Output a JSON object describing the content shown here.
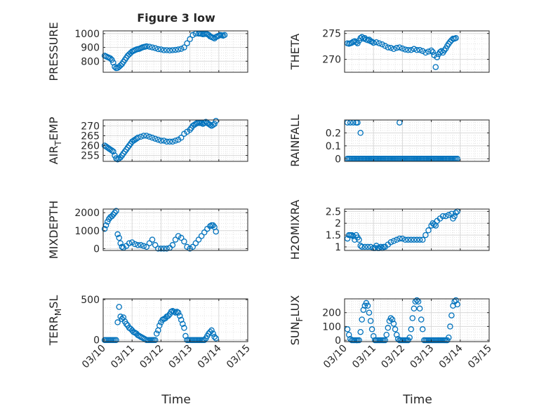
{
  "figure": {
    "title": "Figure 3 low",
    "xlabel": "Time",
    "marker_color": "#0072BD"
  },
  "chart_data": [
    {
      "type": "scatter",
      "ylabel": "PRESSURE",
      "title": "Figure 3 low",
      "xlim": [
        0,
        5
      ],
      "ylim": [
        720,
        1020
      ],
      "yticks": [
        800,
        900,
        1000
      ],
      "ytick_labels": [
        "800",
        "900",
        "1000"
      ],
      "xtick_labels": [],
      "x": [
        0.05,
        0.1,
        0.15,
        0.2,
        0.25,
        0.3,
        0.35,
        0.4,
        0.45,
        0.5,
        0.55,
        0.6,
        0.65,
        0.7,
        0.75,
        0.8,
        0.85,
        0.9,
        0.95,
        1.0,
        1.05,
        1.1,
        1.15,
        1.2,
        1.25,
        1.3,
        1.35,
        1.4,
        1.45,
        1.5,
        1.6,
        1.7,
        1.8,
        1.9,
        2.0,
        2.1,
        2.2,
        2.3,
        2.4,
        2.5,
        2.6,
        2.7,
        2.8,
        2.9,
        3.0,
        3.1,
        3.2,
        3.3,
        3.35,
        3.4,
        3.45,
        3.5,
        3.55,
        3.6,
        3.65,
        3.7,
        3.75,
        3.8,
        3.85,
        3.9,
        3.95,
        4.0,
        4.05,
        4.1,
        4.15,
        4.2
      ],
      "y": [
        840,
        835,
        830,
        825,
        820,
        810,
        790,
        760,
        750,
        752,
        760,
        770,
        780,
        795,
        810,
        825,
        840,
        850,
        860,
        870,
        875,
        880,
        885,
        888,
        890,
        895,
        900,
        903,
        905,
        908,
        905,
        900,
        895,
        888,
        885,
        880,
        880,
        878,
        880,
        882,
        885,
        890,
        900,
        930,
        960,
        990,
        1000,
        1000,
        1000,
        998,
        995,
        997,
        1000,
        996,
        990,
        980,
        975,
        970,
        965,
        975,
        980,
        985,
        990,
        988,
        985,
        990
      ]
    },
    {
      "type": "scatter",
      "ylabel": "THETA",
      "xlim": [
        0,
        5
      ],
      "ylim": [
        267.5,
        275.5
      ],
      "yticks": [
        270,
        275
      ],
      "ytick_labels": [
        "270",
        "275"
      ],
      "xtick_labels": [],
      "x": [
        0.1,
        0.15,
        0.2,
        0.25,
        0.3,
        0.35,
        0.4,
        0.45,
        0.5,
        0.55,
        0.6,
        0.65,
        0.7,
        0.75,
        0.8,
        0.85,
        0.9,
        0.95,
        1.0,
        1.1,
        1.2,
        1.3,
        1.4,
        1.5,
        1.6,
        1.7,
        1.8,
        1.9,
        2.0,
        2.1,
        2.2,
        2.3,
        2.4,
        2.5,
        2.6,
        2.7,
        2.8,
        2.9,
        3.0,
        3.05,
        3.1,
        3.15,
        3.2,
        3.25,
        3.3,
        3.35,
        3.4,
        3.45,
        3.5,
        3.55,
        3.6,
        3.65,
        3.7,
        3.75,
        3.8,
        3.85
      ],
      "y": [
        273.1,
        273.0,
        273.1,
        273.2,
        273.4,
        273.5,
        273.3,
        273.1,
        273.6,
        274.1,
        274.3,
        274.0,
        274.1,
        273.8,
        273.7,
        273.8,
        273.5,
        273.4,
        273.2,
        273.3,
        273.1,
        272.9,
        272.6,
        272.3,
        272.2,
        272.0,
        272.2,
        272.3,
        272.1,
        271.9,
        271.8,
        271.8,
        272.0,
        271.8,
        271.8,
        271.6,
        271.3,
        271.5,
        271.7,
        271.4,
        270.8,
        268.5,
        270.4,
        271.0,
        271.4,
        271.6,
        271.3,
        271.7,
        272.1,
        272.6,
        273.0,
        273.4,
        273.7,
        274.0,
        274.0,
        274.1
      ]
    },
    {
      "type": "scatter",
      "ylabel": "AIR_TEMP",
      "ylabel_parts": [
        "AIR",
        "T",
        "EMP"
      ],
      "xlim": [
        0,
        5
      ],
      "ylim": [
        252,
        273
      ],
      "yticks": [
        255,
        260,
        265,
        270
      ],
      "ytick_labels": [
        "255",
        "260",
        "265",
        "270"
      ],
      "xtick_labels": [],
      "x": [
        0.05,
        0.1,
        0.15,
        0.2,
        0.25,
        0.3,
        0.35,
        0.4,
        0.45,
        0.5,
        0.55,
        0.6,
        0.65,
        0.7,
        0.75,
        0.8,
        0.85,
        0.9,
        0.95,
        1.0,
        1.05,
        1.1,
        1.15,
        1.2,
        1.3,
        1.4,
        1.5,
        1.6,
        1.7,
        1.8,
        1.9,
        2.0,
        2.1,
        2.2,
        2.3,
        2.4,
        2.5,
        2.6,
        2.7,
        2.8,
        2.9,
        3.0,
        3.05,
        3.1,
        3.15,
        3.2,
        3.25,
        3.3,
        3.35,
        3.4,
        3.45,
        3.5,
        3.55,
        3.6,
        3.65,
        3.7,
        3.75,
        3.8,
        3.85,
        3.9
      ],
      "y": [
        260,
        259.5,
        259,
        258.5,
        258,
        257.5,
        257,
        255,
        253.5,
        253,
        253.5,
        254,
        255,
        256,
        257,
        258,
        259,
        260,
        261,
        262,
        262.5,
        263,
        263.5,
        264,
        264.5,
        265,
        265,
        264.5,
        264,
        263.5,
        263,
        262.5,
        262.5,
        262,
        262,
        262,
        262.5,
        263,
        264,
        266,
        267,
        268,
        269,
        270,
        270.5,
        271,
        271.5,
        271.5,
        271.5,
        271.5,
        271,
        271.5,
        272,
        271.5,
        271,
        270.5,
        270,
        270.5,
        271,
        272.5
      ]
    },
    {
      "type": "scatter",
      "ylabel": "RAINFALL",
      "xlim": [
        0,
        5
      ],
      "ylim": [
        -0.02,
        0.3
      ],
      "yticks": [
        0,
        0.1,
        0.2
      ],
      "ytick_labels": [
        "0",
        "0.1",
        "0.2"
      ],
      "xtick_labels": [],
      "x": [
        0.1,
        0.15,
        0.2,
        0.25,
        0.3,
        0.35,
        0.4,
        0.45,
        0.5,
        0.55,
        0.6,
        0.65,
        0.7,
        0.75,
        0.8,
        0.85,
        0.9,
        0.95,
        1.0,
        1.05,
        1.1,
        1.15,
        1.2,
        1.25,
        1.3,
        1.35,
        1.4,
        1.45,
        1.5,
        1.55,
        1.6,
        1.65,
        1.7,
        1.75,
        1.8,
        1.85,
        1.9,
        1.95,
        2.0,
        2.05,
        2.1,
        2.15,
        2.2,
        2.25,
        2.3,
        2.35,
        2.4,
        2.45,
        2.5,
        2.55,
        2.6,
        2.65,
        2.7,
        2.75,
        2.8,
        2.85,
        2.9,
        2.95,
        3.0,
        3.05,
        3.1,
        3.15,
        3.2,
        3.25,
        3.3,
        3.35,
        3.4,
        3.45,
        3.5,
        3.55,
        3.6,
        3.65,
        3.7,
        3.75,
        3.8,
        3.85,
        3.9,
        0.1,
        0.2,
        0.3,
        0.4,
        0.45,
        0.55,
        1.9
      ],
      "y": [
        0,
        0,
        0,
        0,
        0,
        0,
        0,
        0,
        0,
        0,
        0,
        0,
        0,
        0,
        0,
        0,
        0,
        0,
        0,
        0,
        0,
        0,
        0,
        0,
        0,
        0,
        0,
        0,
        0,
        0,
        0,
        0,
        0,
        0,
        0,
        0,
        0,
        0,
        0,
        0,
        0,
        0,
        0,
        0,
        0,
        0,
        0,
        0,
        0,
        0,
        0,
        0,
        0,
        0,
        0,
        0,
        0,
        0,
        0,
        0,
        0,
        0,
        0,
        0,
        0,
        0,
        0,
        0,
        0,
        0,
        0,
        0,
        0,
        0,
        0,
        0,
        0,
        0.28,
        0.28,
        0.28,
        0.28,
        0.28,
        0.2,
        0.28
      ]
    },
    {
      "type": "scatter",
      "ylabel": "MIXDEPTH",
      "xlim": [
        0,
        5
      ],
      "ylim": [
        -100,
        2200
      ],
      "yticks": [
        0,
        1000,
        2000
      ],
      "ytick_labels": [
        "0",
        "1000",
        "2000"
      ],
      "xtick_labels": [],
      "x": [
        0.05,
        0.1,
        0.15,
        0.2,
        0.25,
        0.3,
        0.35,
        0.4,
        0.45,
        0.5,
        0.55,
        0.6,
        0.65,
        0.7,
        0.8,
        0.9,
        1.0,
        1.1,
        1.2,
        1.3,
        1.4,
        1.5,
        1.6,
        1.7,
        1.8,
        1.9,
        2.0,
        2.1,
        2.2,
        2.3,
        2.4,
        2.5,
        2.6,
        2.7,
        2.8,
        2.9,
        3.0,
        3.1,
        3.2,
        3.3,
        3.4,
        3.5,
        3.6,
        3.7,
        3.75,
        3.8,
        3.85,
        3.9
      ],
      "y": [
        1100,
        1300,
        1500,
        1650,
        1750,
        1800,
        1900,
        2000,
        2100,
        800,
        600,
        300,
        100,
        50,
        150,
        300,
        350,
        250,
        200,
        200,
        150,
        100,
        300,
        500,
        200,
        0,
        0,
        0,
        0,
        50,
        200,
        500,
        700,
        600,
        400,
        100,
        0,
        100,
        300,
        500,
        700,
        900,
        1100,
        1250,
        1300,
        1300,
        1200,
        950
      ]
    },
    {
      "type": "scatter",
      "ylabel": "H2OMIXRA",
      "xlim": [
        0,
        5
      ],
      "ylim": [
        0.85,
        2.6
      ],
      "yticks": [
        1,
        1.5,
        2,
        2.5
      ],
      "ytick_labels": [
        "1",
        "1.5",
        "2",
        "2.5"
      ],
      "xtick_labels": [],
      "x": [
        0.1,
        0.15,
        0.2,
        0.25,
        0.3,
        0.35,
        0.4,
        0.45,
        0.5,
        0.55,
        0.6,
        0.7,
        0.8,
        0.9,
        1.0,
        1.05,
        1.1,
        1.15,
        1.2,
        1.25,
        1.3,
        1.35,
        1.4,
        1.5,
        1.6,
        1.7,
        1.8,
        1.9,
        2.0,
        2.1,
        2.2,
        2.3,
        2.4,
        2.5,
        2.6,
        2.7,
        2.8,
        2.9,
        3.0,
        3.05,
        3.1,
        3.15,
        3.2,
        3.3,
        3.4,
        3.5,
        3.6,
        3.7,
        3.75,
        3.8,
        3.85,
        3.9
      ],
      "y": [
        1.35,
        1.5,
        1.5,
        1.5,
        1.45,
        1.3,
        1.5,
        1.4,
        1.3,
        1.05,
        1.0,
        1.0,
        1.0,
        1.0,
        0.95,
        0.95,
        1.05,
        0.95,
        0.95,
        1.0,
        0.95,
        1.0,
        1.0,
        1.1,
        1.2,
        1.25,
        1.3,
        1.35,
        1.35,
        1.3,
        1.3,
        1.3,
        1.3,
        1.3,
        1.3,
        1.3,
        1.5,
        1.7,
        1.9,
        2.0,
        1.95,
        1.9,
        2.1,
        2.2,
        2.3,
        2.3,
        2.35,
        2.4,
        2.2,
        2.3,
        2.45,
        2.5
      ]
    },
    {
      "type": "scatter",
      "ylabel": "TERR_MSL",
      "ylabel_parts": [
        "TERR",
        "M",
        "SL"
      ],
      "xlim": [
        0,
        5
      ],
      "ylim": [
        -20,
        510
      ],
      "yticks": [
        0,
        500
      ],
      "ytick_labels": [
        "0",
        "500"
      ],
      "xticks": [
        0,
        1,
        2,
        3,
        4,
        5
      ],
      "xtick_labels": [
        "03/10",
        "03/11",
        "03/12",
        "03/13",
        "03/14",
        "03/15"
      ],
      "x": [
        0.05,
        0.1,
        0.15,
        0.2,
        0.25,
        0.3,
        0.35,
        0.4,
        0.45,
        0.5,
        0.55,
        0.6,
        0.65,
        0.7,
        0.75,
        0.8,
        0.85,
        0.9,
        0.95,
        1.0,
        1.05,
        1.1,
        1.15,
        1.2,
        1.25,
        1.3,
        1.35,
        1.4,
        1.45,
        1.5,
        1.55,
        1.6,
        1.65,
        1.7,
        1.75,
        1.8,
        1.85,
        1.9,
        1.95,
        2.0,
        2.05,
        2.1,
        2.15,
        2.2,
        2.25,
        2.3,
        2.35,
        2.4,
        2.45,
        2.5,
        2.55,
        2.6,
        2.65,
        2.7,
        2.75,
        2.8,
        2.85,
        2.9,
        2.95,
        3.0,
        3.05,
        3.1,
        3.15,
        3.2,
        3.25,
        3.3,
        3.35,
        3.4,
        3.45,
        3.5,
        3.55,
        3.6,
        3.65,
        3.7,
        3.75,
        3.8,
        3.85,
        3.9
      ],
      "y": [
        0,
        0,
        0,
        0,
        0,
        0,
        0,
        0,
        0,
        220,
        410,
        290,
        260,
        280,
        230,
        200,
        180,
        150,
        140,
        120,
        100,
        90,
        80,
        60,
        50,
        40,
        30,
        20,
        10,
        0,
        0,
        0,
        0,
        0,
        0,
        0,
        80,
        120,
        180,
        220,
        250,
        260,
        270,
        290,
        300,
        320,
        350,
        360,
        350,
        340,
        350,
        340,
        300,
        250,
        200,
        150,
        50,
        0,
        0,
        0,
        0,
        0,
        0,
        0,
        0,
        0,
        0,
        0,
        0,
        0,
        20,
        50,
        80,
        100,
        120,
        80,
        40,
        20
      ]
    },
    {
      "type": "scatter",
      "ylabel": "SUN_FLUX",
      "ylabel_parts": [
        "SUN",
        "F",
        "LUX"
      ],
      "xlim": [
        0,
        5
      ],
      "ylim": [
        -10,
        300
      ],
      "yticks": [
        0,
        100,
        200
      ],
      "ytick_labels": [
        "0",
        "100",
        "200"
      ],
      "xticks": [
        0,
        1,
        2,
        3,
        4,
        5
      ],
      "xtick_labels": [
        "03/10",
        "03/11",
        "03/12",
        "03/13",
        "03/14",
        "03/15"
      ],
      "x": [
        0.1,
        0.15,
        0.2,
        0.25,
        0.3,
        0.35,
        0.4,
        0.45,
        0.5,
        0.55,
        0.6,
        0.65,
        0.7,
        0.75,
        0.8,
        0.85,
        0.9,
        0.95,
        1.0,
        1.05,
        1.1,
        1.15,
        1.2,
        1.25,
        1.3,
        1.35,
        1.4,
        1.45,
        1.5,
        1.55,
        1.6,
        1.65,
        1.7,
        1.75,
        1.8,
        1.85,
        1.9,
        1.95,
        2.0,
        2.05,
        2.1,
        2.15,
        2.2,
        2.25,
        2.3,
        2.35,
        2.4,
        2.45,
        2.5,
        2.55,
        2.6,
        2.65,
        2.7,
        2.75,
        2.8,
        2.85,
        2.9,
        2.95,
        3.0,
        3.05,
        3.1,
        3.15,
        3.2,
        3.25,
        3.3,
        3.35,
        3.4,
        3.45,
        3.5,
        3.55,
        3.6,
        3.65,
        3.7,
        3.75,
        3.8,
        3.85,
        3.9
      ],
      "y": [
        80,
        40,
        10,
        0,
        0,
        0,
        0,
        0,
        0,
        60,
        150,
        220,
        250,
        270,
        250,
        200,
        140,
        80,
        30,
        0,
        0,
        0,
        0,
        0,
        0,
        0,
        0,
        40,
        90,
        140,
        160,
        150,
        120,
        80,
        40,
        10,
        0,
        0,
        0,
        0,
        0,
        0,
        0,
        20,
        80,
        160,
        230,
        280,
        290,
        280,
        230,
        150,
        80,
        0,
        0,
        0,
        0,
        0,
        0,
        0,
        0,
        0,
        0,
        0,
        0,
        0,
        0,
        0,
        0,
        0,
        20,
        100,
        180,
        250,
        280,
        290,
        260
      ]
    }
  ]
}
